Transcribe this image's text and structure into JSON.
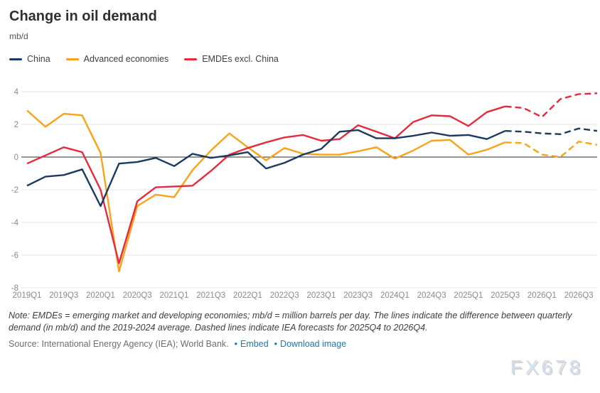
{
  "title": "Change in oil demand",
  "unit_label": "mb/d",
  "legend": [
    {
      "label": "China",
      "color": "#1b3a60"
    },
    {
      "label": "Advanced economies",
      "color": "#f9a21a"
    },
    {
      "label": "EMDEs excl. China",
      "color": "#e52a3d"
    }
  ],
  "chart_data": {
    "type": "line",
    "title": "Change in oil demand",
    "ylabel": "mb/d",
    "ylim": [
      -8,
      4.6
    ],
    "yticks": [
      4,
      2,
      0,
      -2,
      -4,
      -6,
      -8
    ],
    "grid": "horizontal",
    "legend_position": "top-left",
    "forecast_start": "2025Q4",
    "forecast_style": "dashed",
    "x_tick_every": 2,
    "x": [
      "2019Q1",
      "2019Q2",
      "2019Q3",
      "2019Q4",
      "2020Q1",
      "2020Q2",
      "2020Q3",
      "2020Q4",
      "2021Q1",
      "2021Q2",
      "2021Q3",
      "2021Q4",
      "2022Q1",
      "2022Q2",
      "2022Q3",
      "2022Q4",
      "2023Q1",
      "2023Q2",
      "2023Q3",
      "2023Q4",
      "2024Q1",
      "2024Q2",
      "2024Q3",
      "2024Q4",
      "2025Q1",
      "2025Q2",
      "2025Q3",
      "2025Q4",
      "2026Q1",
      "2026Q2",
      "2026Q3",
      "2026Q4"
    ],
    "series": [
      {
        "name": "China",
        "color": "#1b3a60",
        "values": [
          -1.75,
          -1.2,
          -1.1,
          -0.75,
          -3.0,
          -0.4,
          -0.3,
          -0.05,
          -0.55,
          0.2,
          -0.05,
          0.1,
          0.3,
          -0.7,
          -0.35,
          0.15,
          0.5,
          1.55,
          1.65,
          1.15,
          1.15,
          1.3,
          1.5,
          1.3,
          1.35,
          1.1,
          1.6,
          1.55,
          1.45,
          1.4,
          1.75,
          1.6
        ]
      },
      {
        "name": "Advanced economies",
        "color": "#f9a21a",
        "values": [
          2.85,
          1.85,
          2.65,
          2.55,
          0.25,
          -7.0,
          -3.0,
          -2.3,
          -2.45,
          -0.8,
          0.4,
          1.45,
          0.6,
          -0.2,
          0.55,
          0.2,
          0.15,
          0.15,
          0.35,
          0.6,
          -0.1,
          0.4,
          1.0,
          1.05,
          0.15,
          0.45,
          0.9,
          0.85,
          0.15,
          0.0,
          0.95,
          0.75
        ]
      },
      {
        "name": "EMDEs excl. China",
        "color": "#e52a3d",
        "values": [
          -0.4,
          0.1,
          0.6,
          0.3,
          -2.0,
          -6.5,
          -2.7,
          -1.85,
          -1.8,
          -1.75,
          -0.85,
          0.15,
          0.55,
          0.9,
          1.2,
          1.35,
          1.0,
          1.1,
          1.95,
          1.55,
          1.15,
          2.15,
          2.55,
          2.5,
          1.9,
          2.75,
          3.1,
          3.0,
          2.45,
          3.55,
          3.85,
          3.9
        ]
      }
    ],
    "colors": {
      "gridline": "#e3e3e3",
      "zero_line": "#2e2e2e",
      "tick_text": "#8a8a8a"
    }
  },
  "note": "Note: EMDEs = emerging market and developing economies; mb/d = million barrels per day. The lines indicate the difference between quarterly demand (in mb/d) and the 2019-2024 average. Dashed lines indicate IEA forecasts for 2025Q4 to 2026Q4.",
  "source": {
    "prefix": "Source: International Energy Agency (IEA); World Bank.",
    "links": [
      {
        "label": "Embed"
      },
      {
        "label": "Download image"
      }
    ]
  },
  "watermark": "FX678"
}
